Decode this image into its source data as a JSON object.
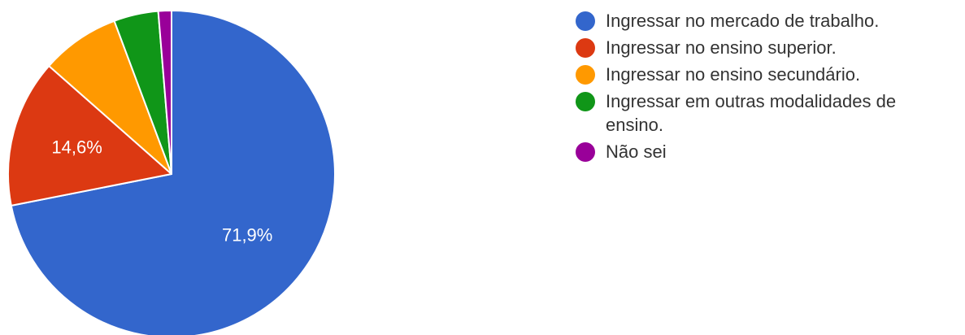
{
  "chart_data": {
    "type": "pie",
    "start": "12 o'clock, clockwise",
    "categories": [
      "Ingressar no mercado de trabalho.",
      "Ingressar no ensino superior.",
      "Ingressar no ensino secundário.",
      "Ingressar em outras modalidades de ensino.",
      "Não sei"
    ],
    "values": [
      71.9,
      14.6,
      7.8,
      4.4,
      1.3
    ],
    "value_unit": "%",
    "data_labels": [
      "71,9%",
      "14,6%",
      "",
      "",
      ""
    ],
    "colors": [
      "#3366cc",
      "#dc3912",
      "#ff9900",
      "#109618",
      "#990099"
    ],
    "legend_position": "right"
  },
  "legend": {
    "items": [
      {
        "text": "Ingressar no mercado de trabalho."
      },
      {
        "text": "Ingressar no ensino superior."
      },
      {
        "text": "Ingressar no ensino secundário."
      },
      {
        "text": "Ingressar em outras modalidades de ensino."
      },
      {
        "text": "Não sei"
      }
    ]
  }
}
